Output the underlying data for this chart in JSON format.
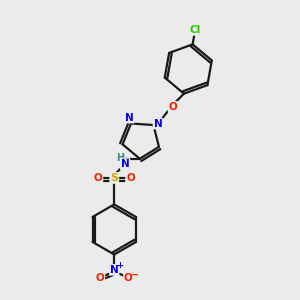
{
  "bg_color": "#ebebeb",
  "bond_color": "#1a1a1a",
  "atom_colors": {
    "Cl": "#22cc00",
    "O": "#ee2200",
    "N": "#0000ee",
    "S": "#ccaa00",
    "H": "#448888",
    "C": "#1a1a1a"
  }
}
